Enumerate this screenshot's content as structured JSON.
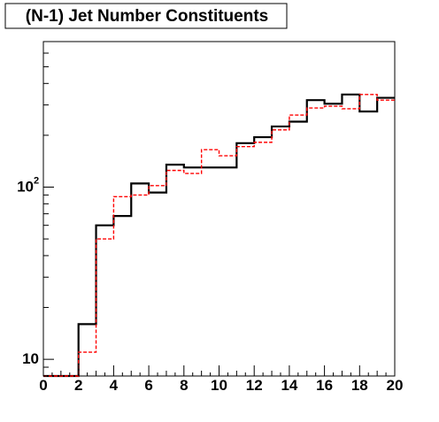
{
  "chart_data": {
    "type": "histogram",
    "title": "(N-1) Jet Number Constituents",
    "xlabel": "",
    "ylabel": "",
    "xlim": [
      0,
      20
    ],
    "ylim": [
      8,
      700
    ],
    "y_scale": "log",
    "grid": false,
    "legend": "none",
    "bin_edges": [
      0,
      1,
      2,
      3,
      4,
      5,
      6,
      7,
      8,
      9,
      10,
      11,
      12,
      13,
      14,
      15,
      16,
      17,
      18,
      19,
      20
    ],
    "x_ticks": [
      0,
      2,
      4,
      6,
      8,
      10,
      12,
      14,
      16,
      18,
      20
    ],
    "x_tick_labels": [
      "0",
      "2",
      "4",
      "6",
      "8",
      "10",
      "12",
      "14",
      "16",
      "18",
      "20"
    ],
    "y_ticks": [
      10,
      100
    ],
    "y_tick_labels": [
      "10",
      "10",
      "2"
    ],
    "y_tick_label_main": [
      "10",
      "10"
    ],
    "y_tick_label_superscript": [
      "",
      "2"
    ],
    "series": [
      {
        "color": "#000000",
        "line_style": "solid",
        "values": [
          8,
          8,
          16,
          60,
          68,
          105,
          93,
          135,
          130,
          130,
          130,
          180,
          195,
          225,
          240,
          320,
          305,
          345,
          275,
          330
        ]
      },
      {
        "color": "#ff0000",
        "line_style": "dashed",
        "values": [
          8,
          8,
          11,
          50,
          88,
          90,
          102,
          125,
          120,
          165,
          152,
          172,
          182,
          215,
          262,
          288,
          295,
          285,
          345,
          320
        ]
      }
    ]
  }
}
